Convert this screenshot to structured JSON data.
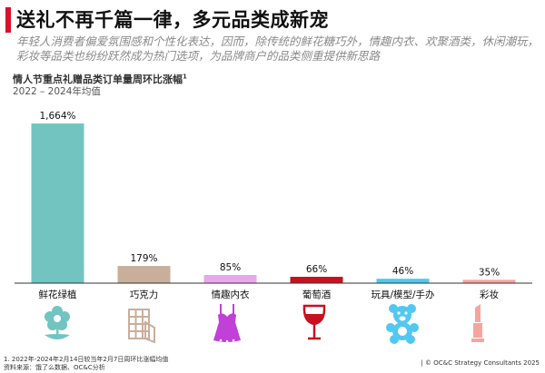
{
  "header": {
    "title": "送礼不再千篇一律，多元品类成新宠",
    "subtitle": "年轻人消费者偏爱氛围感和个性化表达，因而，除传统的鲜花糖巧外，情趣内衣、欢聚酒类，休闲潮玩，彩妆等品类也纷纷跃然成为热门选项，为品牌商户的品类侧重提供新思路"
  },
  "chart_header": {
    "title": "情人节重点礼赠品类订单量周环比涨幅",
    "title_sup": "1",
    "subtitle": "2022 – 2024年均值"
  },
  "chart_data": {
    "type": "bar",
    "categories": [
      "鲜花绿植",
      "巧克力",
      "情趣内衣",
      "葡萄酒",
      "玩具/模型/手办",
      "彩妆"
    ],
    "values": [
      1664,
      179,
      85,
      66,
      46,
      35
    ],
    "value_labels": [
      "1,664%",
      "179%",
      "85%",
      "66%",
      "46%",
      "35%"
    ],
    "colors": [
      "#72c4c1",
      "#c9ae9b",
      "#e9a6ef",
      "#c8101e",
      "#52c8f0",
      "#f6a59c"
    ],
    "title": "情人节重点礼赠品类订单量周环比涨幅",
    "ylabel": "",
    "xlabel": "",
    "ylim": [
      0,
      1750
    ]
  },
  "icons": [
    "flower-icon",
    "chocolate-icon",
    "lingerie-icon",
    "wine-glass-icon",
    "teddy-bear-icon",
    "lipstick-icon"
  ],
  "footer": {
    "note1": "1. 2022年-2024年2月14日较当年2月7日周环比涨幅均值",
    "note2": "资料来源：饿了么数据、OC&C分析",
    "copyright": "| © OC&C Strategy Consultants 2025"
  }
}
